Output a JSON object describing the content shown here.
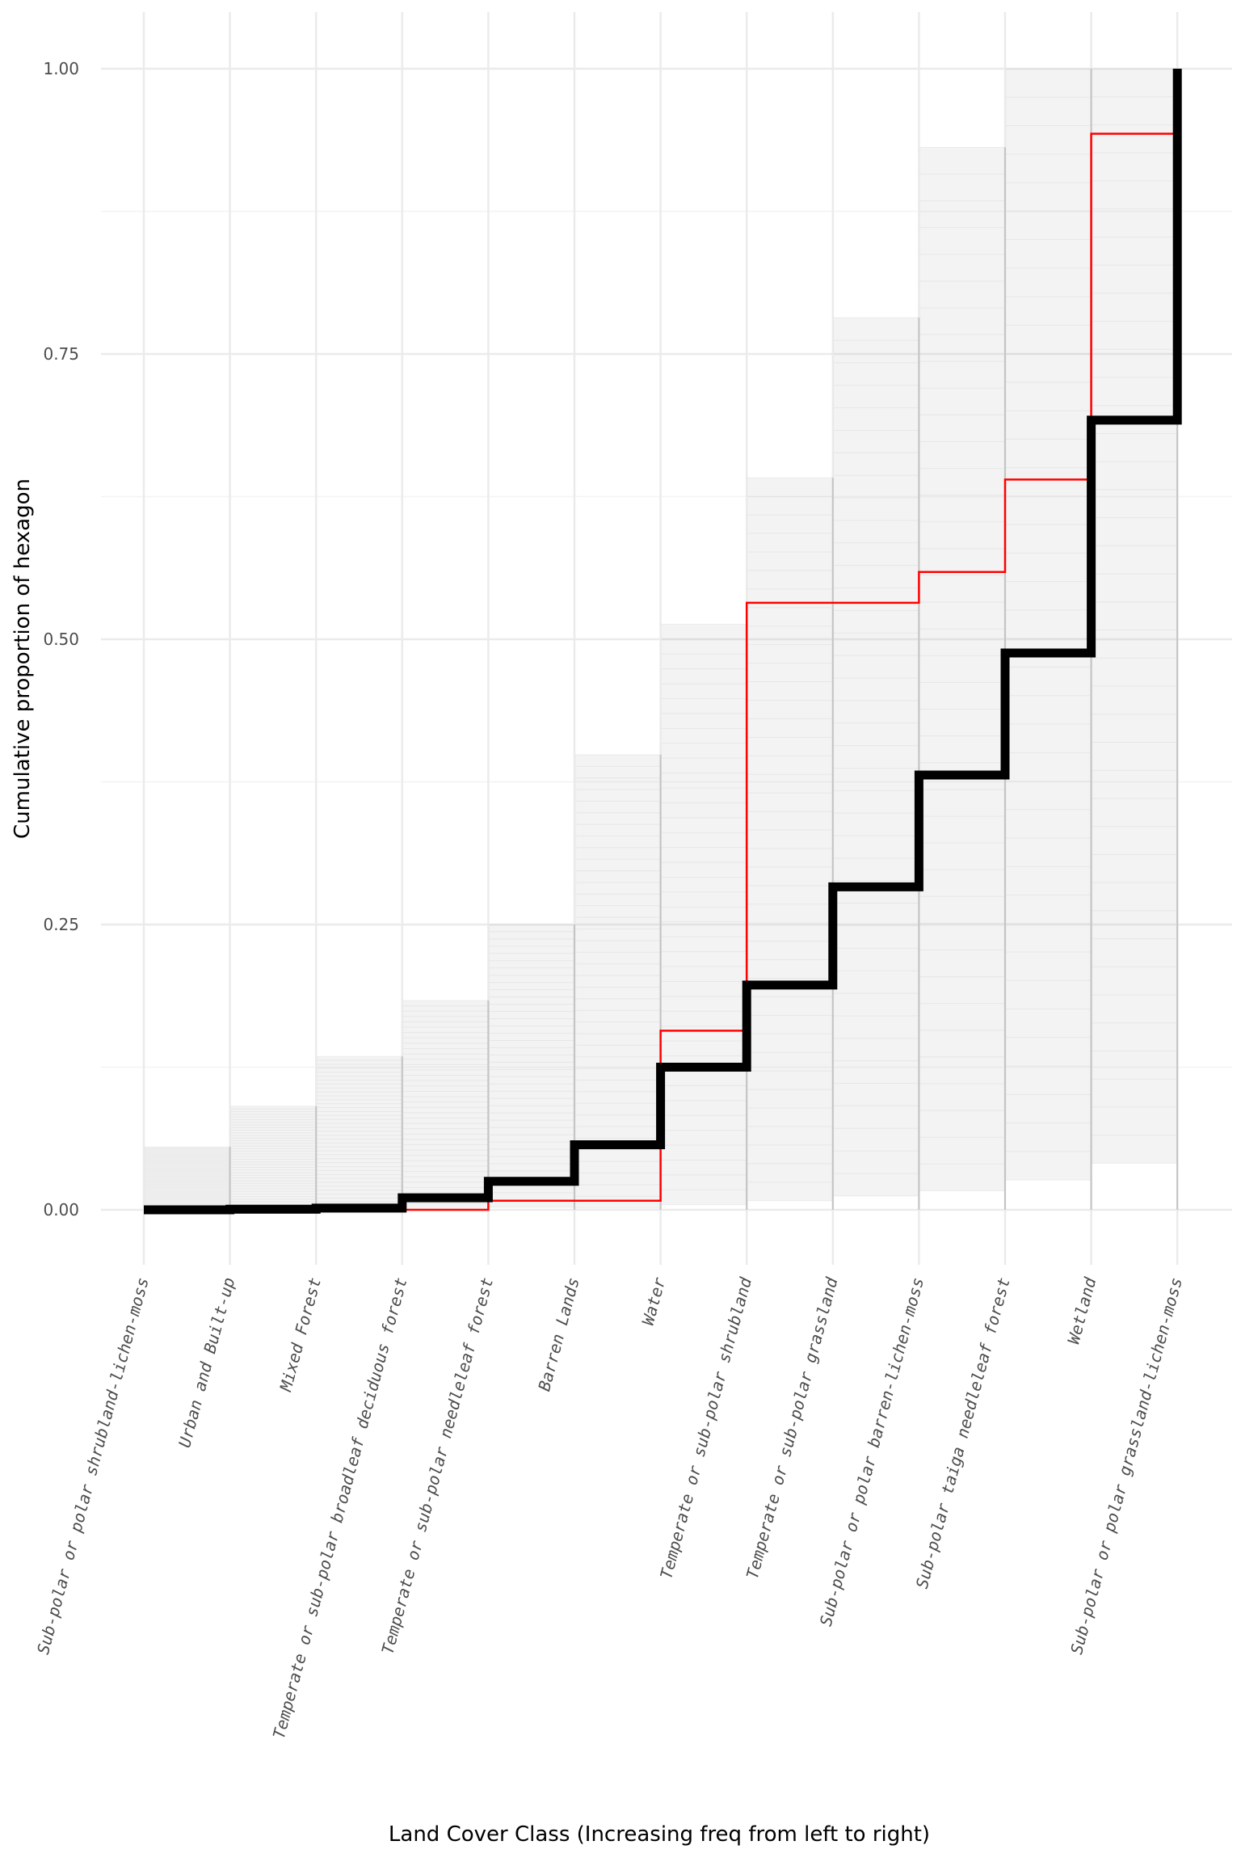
{
  "chart_data": {
    "type": "line",
    "xlabel": "Land Cover Class (Increasing freq from left to right)",
    "ylabel": "Cumulative proportion of hexagon",
    "ylim": [
      -0.05,
      1.05
    ],
    "yticks": [
      "0.00",
      "0.25",
      "0.50",
      "0.75",
      "1.00"
    ],
    "ytick_values": [
      0,
      0.25,
      0.5,
      0.75,
      1.0
    ],
    "grid": true,
    "legend": "none",
    "categories": [
      "Sub-polar or polar shrubland-lichen-moss",
      "Urban and Built-up",
      "Mixed Forest",
      "Temperate or sub-polar broadleaf deciduous forest",
      "Temperate or sub-polar needleleaf forest",
      "Barren Lands",
      "Water",
      "Temperate or sub-polar shrubland",
      "Temperate or sub-polar grassland",
      "Sub-polar or polar barren-lichen-moss",
      "Sub-polar taiga needleleaf forest",
      "Wetland",
      "Sub-polar or polar grassland-lichen-moss"
    ],
    "series": [
      {
        "style": "step",
        "color": "#000000",
        "values": [
          0.0,
          0.0005,
          0.0015,
          0.0105,
          0.025,
          0.057,
          0.125,
          0.197,
          0.283,
          0.381,
          0.488,
          0.692,
          1.0
        ]
      },
      {
        "style": "step",
        "color": "#ff0000",
        "values": [
          0.0,
          0.0,
          0.0,
          0.0,
          0.008,
          0.008,
          0.157,
          0.532,
          0.532,
          0.559,
          0.64,
          0.943,
          1.0
        ]
      }
    ],
    "background_lines_color": "#bfbfbf"
  }
}
